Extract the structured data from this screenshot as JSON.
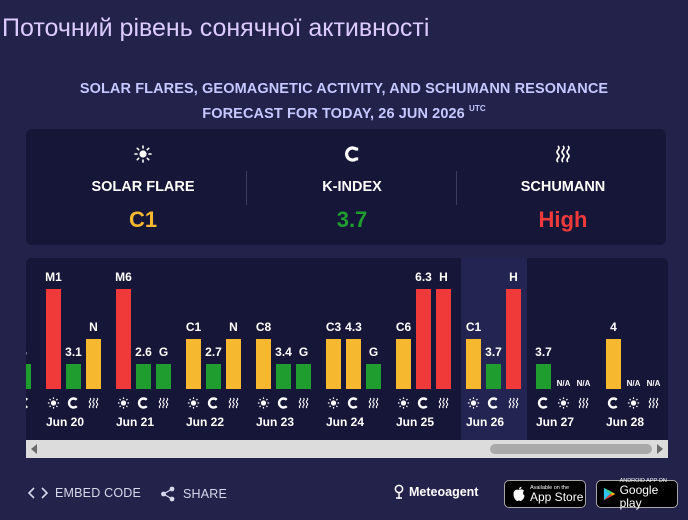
{
  "page_title": "Поточний рівень сонячної активності",
  "subtitle": {
    "line1": "SOLAR FLARES, GEOMAGNETIC ACTIVITY, AND SCHUMANN RESONANCE",
    "line2": "FORECAST FOR TODAY, 26 JUN 2026",
    "tz": "UTC"
  },
  "summary": [
    {
      "icon": "sun-icon",
      "label": "SOLAR FLARE",
      "value": "C1",
      "color": "#f5b82e"
    },
    {
      "icon": "magnet-icon",
      "label": "K-INDEX",
      "value": "3.7",
      "color": "#1f9e2f"
    },
    {
      "icon": "waves-icon",
      "label": "SCHUMANN",
      "value": "High",
      "color": "#f03a3a"
    }
  ],
  "colors": {
    "red": "#f03a3a",
    "yellow": "#f5b82e",
    "green": "#1f9e2f",
    "accent_text": "#c6c8ff",
    "background": "#22224a",
    "panel": "#161638"
  },
  "chart_data": {
    "type": "bar",
    "series": [
      "solar flare",
      "k-index",
      "schumann"
    ],
    "days": [
      {
        "date": "",
        "partial": true,
        "bars": [
          {
            "kind": "k",
            "label": "5",
            "level": "green"
          }
        ]
      },
      {
        "date": "Jun 20",
        "bars": [
          {
            "kind": "flare",
            "label": "M1",
            "level": "red"
          },
          {
            "kind": "k",
            "label": "3.1",
            "level": "green"
          },
          {
            "kind": "schumann",
            "label": "N",
            "level": "yellow"
          }
        ]
      },
      {
        "date": "Jun 21",
        "bars": [
          {
            "kind": "flare",
            "label": "M6",
            "level": "red"
          },
          {
            "kind": "k",
            "label": "2.6",
            "level": "green"
          },
          {
            "kind": "schumann",
            "label": "G",
            "level": "green"
          }
        ]
      },
      {
        "date": "Jun 22",
        "bars": [
          {
            "kind": "flare",
            "label": "C1",
            "level": "yellow"
          },
          {
            "kind": "k",
            "label": "2.7",
            "level": "green"
          },
          {
            "kind": "schumann",
            "label": "N",
            "level": "yellow"
          }
        ]
      },
      {
        "date": "Jun 23",
        "bars": [
          {
            "kind": "flare",
            "label": "C8",
            "level": "yellow"
          },
          {
            "kind": "k",
            "label": "3.4",
            "level": "green"
          },
          {
            "kind": "schumann",
            "label": "G",
            "level": "green"
          }
        ]
      },
      {
        "date": "Jun 24",
        "bars": [
          {
            "kind": "flare",
            "label": "C3",
            "level": "yellow"
          },
          {
            "kind": "k",
            "label": "4.3",
            "level": "yellow"
          },
          {
            "kind": "schumann",
            "label": "G",
            "level": "green"
          }
        ]
      },
      {
        "date": "Jun 25",
        "bars": [
          {
            "kind": "flare",
            "label": "C6",
            "level": "yellow"
          },
          {
            "kind": "k",
            "label": "6.3",
            "level": "red"
          },
          {
            "kind": "schumann",
            "label": "H",
            "level": "red"
          }
        ]
      },
      {
        "date": "Jun 26",
        "today": true,
        "bars": [
          {
            "kind": "flare",
            "label": "C1",
            "level": "yellow"
          },
          {
            "kind": "k",
            "label": "3.7",
            "level": "green"
          },
          {
            "kind": "schumann",
            "label": "H",
            "level": "red"
          }
        ]
      },
      {
        "date": "Jun 27",
        "bars": [
          {
            "kind": "k",
            "label": "3.7",
            "level": "green"
          },
          {
            "kind": "flare",
            "label": "N/A",
            "level": "na"
          },
          {
            "kind": "schumann",
            "label": "N/A",
            "level": "na"
          }
        ]
      },
      {
        "date": "Jun 28",
        "bars": [
          {
            "kind": "k",
            "label": "4",
            "level": "yellow"
          },
          {
            "kind": "flare",
            "label": "N/A",
            "level": "na"
          },
          {
            "kind": "schumann",
            "label": "N/A",
            "level": "na"
          }
        ]
      }
    ]
  },
  "footer": {
    "embed_label": "EMBED CODE",
    "share_label": "SHARE",
    "brand": "Meteoagent",
    "appstore_small": "Available on the",
    "appstore_big": "App Store",
    "googleplay_small": "ANDROID APP ON",
    "googleplay_big": "Google play"
  }
}
